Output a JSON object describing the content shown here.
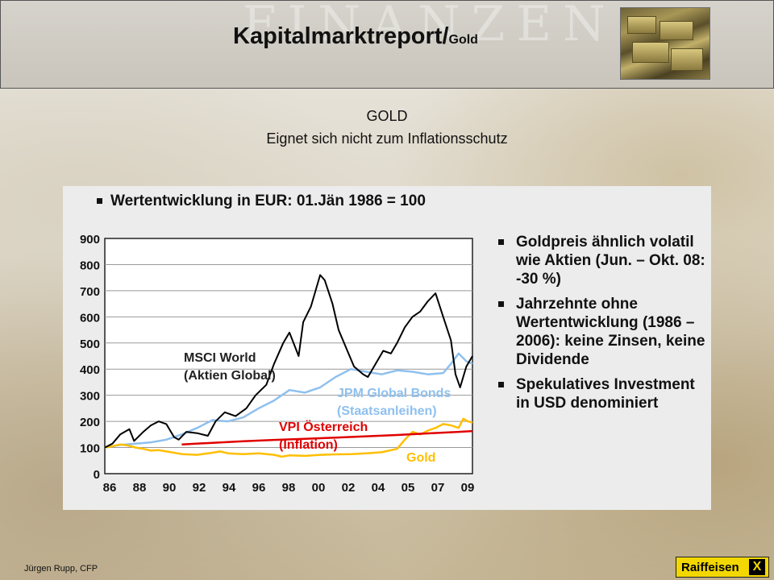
{
  "header": {
    "title": "Kapitalmarktreport/",
    "title_sub": "Gold",
    "watermark": "FINANZEN"
  },
  "subtitle": {
    "line1": "GOLD",
    "line2": "Eignet sich nicht zum Inflationsschutz"
  },
  "chart_data": {
    "type": "line",
    "title": "Wertentwicklung in EUR: 01.Jän 1986 = 100",
    "xlabel": "",
    "ylabel": "",
    "xlim": [
      1986,
      2009.9
    ],
    "ylim": [
      0,
      900
    ],
    "yticks": [
      0,
      100,
      200,
      300,
      400,
      500,
      600,
      700,
      800,
      900
    ],
    "xtick_labels": [
      "86",
      "88",
      "90",
      "92",
      "94",
      "96",
      "98",
      "00",
      "02",
      "04",
      "05",
      "07",
      "09"
    ],
    "grid": true,
    "legend": "inline-labels",
    "series": [
      {
        "name": "MSCI World (Aktien Global)",
        "label_line1": "MSCI World",
        "label_line2": "(Aktien Global)",
        "color": "#000000",
        "x": [
          1986,
          1986.5,
          1987,
          1987.6,
          1987.9,
          1988.5,
          1989,
          1989.5,
          1990,
          1990.5,
          1990.8,
          1991.3,
          1992,
          1992.7,
          1993.2,
          1993.8,
          1994.5,
          1995.2,
          1995.8,
          1996.5,
          1997,
          1997.6,
          1998,
          1998.6,
          1998.9,
          1999.4,
          2000,
          2000.3,
          2000.8,
          2001.2,
          2001.7,
          2002.2,
          2002.8,
          2003.1,
          2003.6,
          2004.1,
          2004.6,
          2005,
          2005.5,
          2006,
          2006.5,
          2007,
          2007.5,
          2008,
          2008.5,
          2008.8,
          2009.1,
          2009.5,
          2009.9
        ],
        "y": [
          100,
          115,
          150,
          170,
          125,
          160,
          185,
          200,
          190,
          140,
          130,
          160,
          155,
          145,
          200,
          235,
          220,
          250,
          300,
          340,
          420,
          500,
          540,
          450,
          580,
          640,
          760,
          740,
          650,
          550,
          480,
          410,
          380,
          370,
          420,
          470,
          460,
          500,
          560,
          600,
          620,
          660,
          690,
          600,
          510,
          380,
          330,
          410,
          450
        ]
      },
      {
        "name": "JPM Global Bonds (Staatsanleihen)",
        "label_line1": "JPM Global Bonds",
        "label_line2": "(Staatsanleihen)",
        "color": "#8fc0ee",
        "x": [
          1986,
          1987,
          1988,
          1989,
          1990,
          1991,
          1992,
          1993,
          1994,
          1995,
          1996,
          1997,
          1998,
          1999,
          2000,
          2001,
          2002,
          2003,
          2004,
          2005,
          2006,
          2007,
          2008,
          2008.5,
          2009,
          2009.5,
          2009.9
        ],
        "y": [
          100,
          110,
          115,
          120,
          130,
          150,
          175,
          205,
          200,
          215,
          250,
          280,
          320,
          310,
          330,
          370,
          400,
          390,
          380,
          395,
          390,
          380,
          385,
          420,
          460,
          430,
          420
        ]
      },
      {
        "name": "VPI Österreich (Inflation)",
        "label_line1": "VPI Österreich",
        "label_line2": "(Inflation)",
        "color": "#e00000",
        "x": [
          1991,
          1993,
          1995,
          1997,
          1999,
          2001,
          2003,
          2005,
          2007,
          2009,
          2009.9
        ],
        "y": [
          112,
          118,
          124,
          129,
          133,
          138,
          143,
          148,
          154,
          160,
          163
        ]
      },
      {
        "name": "Gold",
        "label_line1": "Gold",
        "color": "#ffbf00",
        "x": [
          1986,
          1986.5,
          1987,
          1987.5,
          1988,
          1988.5,
          1989,
          1989.5,
          1990,
          1990.5,
          1991,
          1992,
          1993,
          1993.5,
          1994,
          1995,
          1996,
          1997,
          1997.5,
          1998,
          1999,
          2000,
          2001,
          2002,
          2003,
          2004,
          2005,
          2005.5,
          2006,
          2006.5,
          2007,
          2007.5,
          2008,
          2008.5,
          2009,
          2009.3,
          2009.6,
          2009.9
        ],
        "y": [
          100,
          105,
          112,
          108,
          100,
          95,
          88,
          90,
          85,
          80,
          75,
          72,
          80,
          85,
          78,
          75,
          78,
          72,
          65,
          70,
          68,
          72,
          74,
          75,
          78,
          82,
          95,
          130,
          160,
          150,
          165,
          175,
          190,
          185,
          175,
          210,
          200,
          195
        ]
      }
    ],
    "notes": [
      "Goldpreis ähnlich volatil wie Aktien (Jun. – Okt. 08: -30 %)",
      "Jahrzehnte ohne Wertentwicklung (1986 – 2006): keine Zinsen, keine Dividende",
      "Spekulatives Investment in USD denominiert"
    ]
  },
  "footer": {
    "author": "Jürgen Rupp, CFP",
    "logo": "Raiffeisen",
    "logo_mark": "X"
  }
}
